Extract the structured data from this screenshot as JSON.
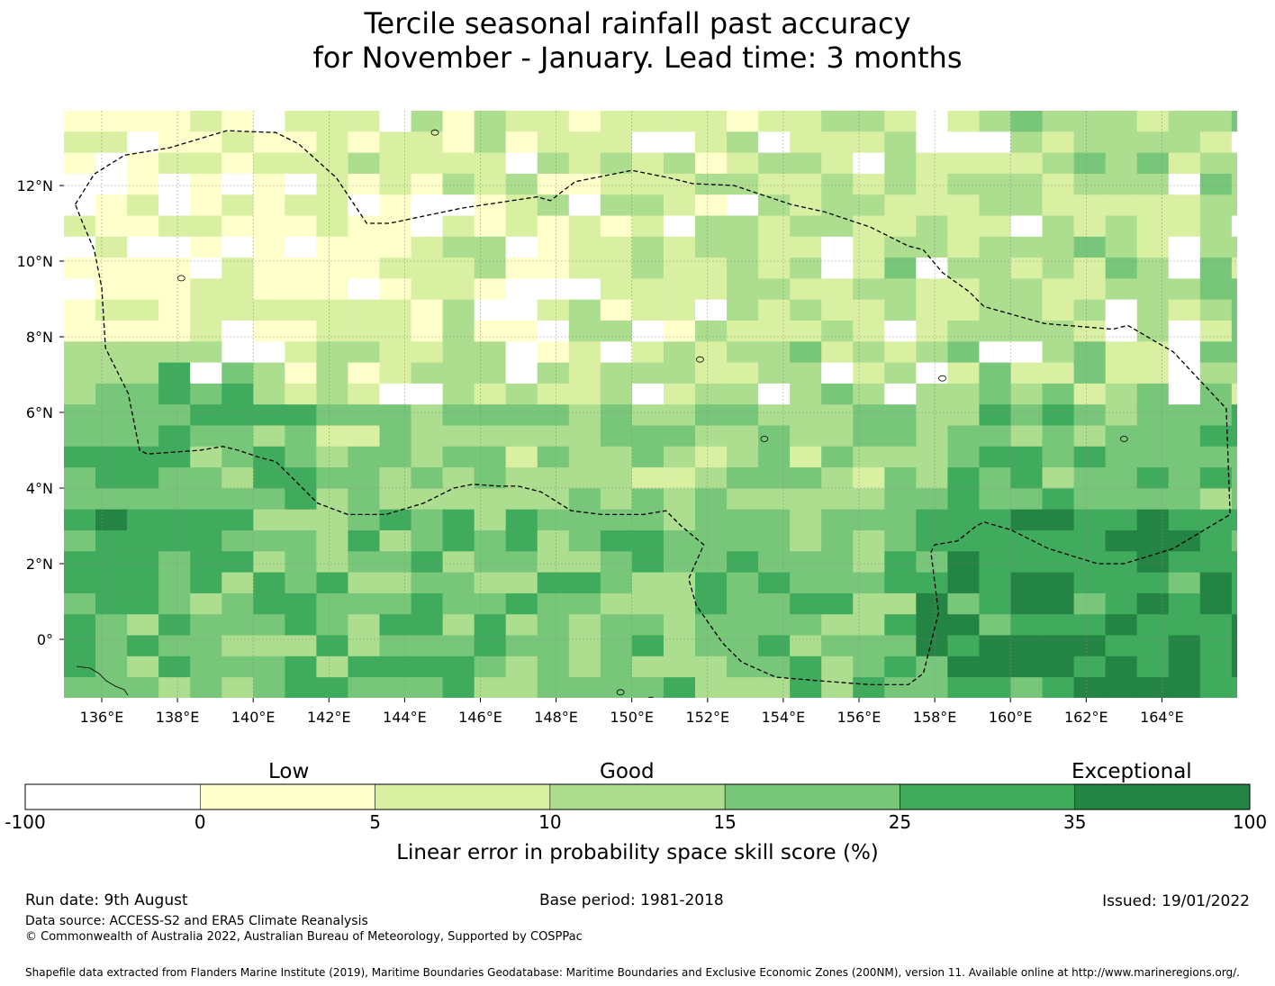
{
  "title": {
    "line1": "Tercile seasonal rainfall past accuracy",
    "line2": "for November - January. Lead time: 3 months"
  },
  "map": {
    "lon_min": 135,
    "lon_max": 166,
    "lat_min": -1.5,
    "lat_max": 14,
    "lon_ticks": [
      136,
      138,
      140,
      142,
      144,
      146,
      148,
      150,
      152,
      154,
      156,
      158,
      160,
      162,
      164
    ],
    "lon_tick_labels": [
      "136°E",
      "138°E",
      "140°E",
      "142°E",
      "144°E",
      "146°E",
      "148°E",
      "150°E",
      "152°E",
      "154°E",
      "156°E",
      "158°E",
      "160°E",
      "162°E",
      "164°E"
    ],
    "lat_ticks": [
      12,
      10,
      8,
      6,
      4,
      2,
      0
    ],
    "lat_tick_labels": [
      "12°N",
      "10°N",
      "8°N",
      "6°N",
      "4°N",
      "2°N",
      "0°"
    ],
    "grid": true,
    "category_colors": [
      "#ffffff",
      "#ffffcc",
      "#d9f0a3",
      "#addd8e",
      "#78c679",
      "#41ab5d",
      "#238443"
    ],
    "eez_boundary_lonlat": [
      [
        135.3,
        11.5
      ],
      [
        135.8,
        12.3
      ],
      [
        136.6,
        12.8
      ],
      [
        137.8,
        13.0
      ],
      [
        139.3,
        13.45
      ],
      [
        140.6,
        13.4
      ],
      [
        141.2,
        13.1
      ],
      [
        142.2,
        12.2
      ],
      [
        143.0,
        11.0
      ],
      [
        143.6,
        11.0
      ],
      [
        145.5,
        11.4
      ],
      [
        147.5,
        11.7
      ],
      [
        147.85,
        11.6
      ],
      [
        148.5,
        12.1
      ],
      [
        150.0,
        12.4
      ],
      [
        151.0,
        12.2
      ],
      [
        151.6,
        12.05
      ],
      [
        152.7,
        12.0
      ],
      [
        154.2,
        11.5
      ],
      [
        155.1,
        11.3
      ],
      [
        156.3,
        10.9
      ],
      [
        157.3,
        10.4
      ],
      [
        157.7,
        10.3
      ],
      [
        158.2,
        9.7
      ],
      [
        158.9,
        9.2
      ],
      [
        159.3,
        8.8
      ],
      [
        160.9,
        8.35
      ],
      [
        162.7,
        8.2
      ],
      [
        163.1,
        8.3
      ],
      [
        164.3,
        7.6
      ],
      [
        165.7,
        6.1
      ],
      [
        165.8,
        3.3
      ],
      [
        164.3,
        2.4
      ],
      [
        163.0,
        2.0
      ],
      [
        162.3,
        2.0
      ],
      [
        161.0,
        2.4
      ],
      [
        160.0,
        2.9
      ],
      [
        159.3,
        3.1
      ],
      [
        159.1,
        3.0
      ],
      [
        158.6,
        2.6
      ],
      [
        158.0,
        2.5
      ],
      [
        157.9,
        2.3
      ],
      [
        158.1,
        0.7
      ],
      [
        157.7,
        -0.9
      ],
      [
        157.3,
        -1.2
      ],
      [
        156.3,
        -1.2
      ],
      [
        155.0,
        -1.1
      ],
      [
        153.8,
        -1.0
      ],
      [
        152.9,
        -0.6
      ],
      [
        152.4,
        -0.1
      ],
      [
        151.7,
        0.9
      ],
      [
        151.5,
        1.6
      ],
      [
        151.9,
        2.5
      ],
      [
        151.3,
        3.0
      ],
      [
        150.9,
        3.4
      ],
      [
        150.3,
        3.3
      ],
      [
        149.2,
        3.3
      ],
      [
        148.4,
        3.4
      ],
      [
        147.6,
        3.9
      ],
      [
        147.0,
        4.05
      ],
      [
        146.5,
        4.05
      ],
      [
        145.8,
        4.1
      ],
      [
        145.3,
        4.0
      ],
      [
        144.5,
        3.6
      ],
      [
        143.5,
        3.3
      ],
      [
        142.5,
        3.3
      ],
      [
        141.7,
        3.6
      ],
      [
        141.1,
        4.2
      ],
      [
        140.6,
        4.7
      ],
      [
        140.2,
        4.8
      ],
      [
        139.6,
        5.0
      ],
      [
        139.2,
        5.1
      ],
      [
        138.6,
        5.0
      ],
      [
        137.9,
        4.95
      ],
      [
        137.2,
        4.9
      ],
      [
        137.0,
        5.0
      ],
      [
        136.7,
        6.5
      ],
      [
        136.1,
        7.7
      ],
      [
        136.0,
        9.3
      ],
      [
        135.8,
        10.3
      ],
      [
        135.5,
        11.0
      ],
      [
        135.3,
        11.5
      ]
    ]
  },
  "colorbar": {
    "category_words": [
      "Low",
      "Good",
      "Exceptional"
    ],
    "boundaries": [
      "-100",
      "0",
      "5",
      "10",
      "15",
      "25",
      "35",
      "100"
    ],
    "colors": [
      "#ffffff",
      "#ffffcc",
      "#d9f0a3",
      "#addd8e",
      "#78c679",
      "#41ab5d",
      "#238443"
    ],
    "label": "Linear error in probability space skill score (%)"
  },
  "footer": {
    "run_date": "Run date: 9th August",
    "base_period": "Base period: 1981-2018",
    "issued": "Issued: 19/01/2022",
    "data_source": "Data source: ACCESS-S2 and ERA5 Climate Reanalysis",
    "copyright": "© Commonwealth of Australia 2022, Australian Bureau of Meteorology, Supported by COSPPac",
    "shapefile": "Shapefile data extracted from Flanders Marine Institute (2019), Maritime Boundaries Geodatabase: Maritime Boundaries and Exclusive Economic Zones (200NM), version 11. Available online at http://www.marineregions.org/."
  }
}
